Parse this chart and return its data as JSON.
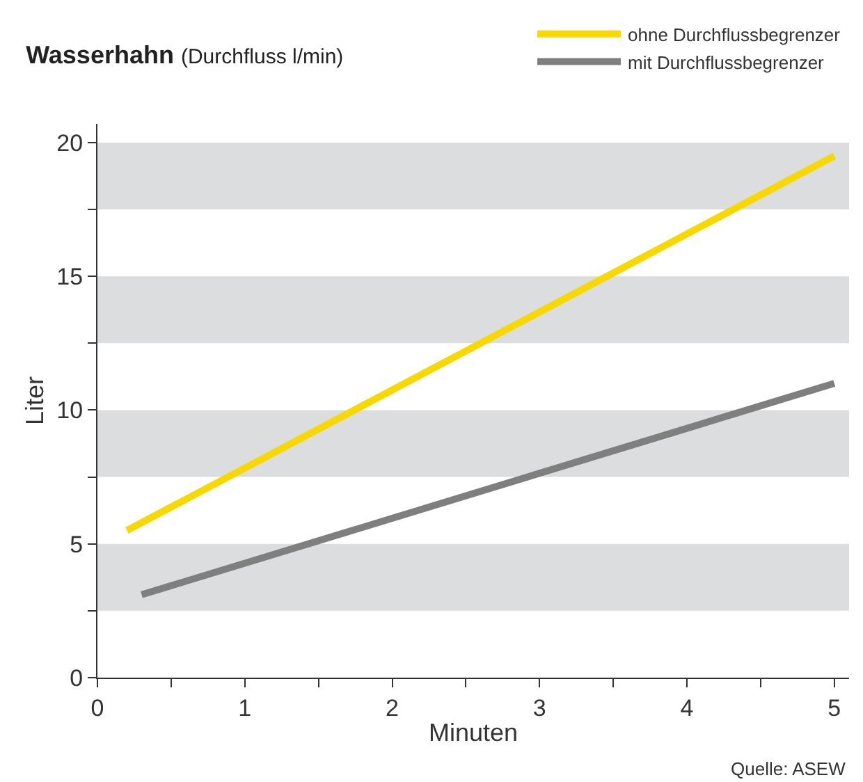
{
  "chart_data": {
    "type": "line",
    "title": "Wasserhahn",
    "subtitle": "(Durchfluss l/min)",
    "xlabel": "Minuten",
    "ylabel": "Liter",
    "annotations": [
      "Quelle: ASEW"
    ],
    "series": [
      {
        "name": "ohne Durchflussbegrenzer",
        "color": "#f7d800",
        "x": [
          0.2,
          5
        ],
        "values": [
          5.5,
          19.5
        ]
      },
      {
        "name": "mit Durchflussbegrenzer",
        "color": "#7f7f7f",
        "x": [
          0.3,
          5
        ],
        "values": [
          3.1,
          11.0
        ]
      }
    ],
    "xlim": [
      0,
      5.1
    ],
    "ylim": [
      0,
      20.7
    ],
    "xticks": [
      0,
      {
        "value": 0.5,
        "label": null
      },
      1,
      {
        "value": 1.5,
        "label": null
      },
      2,
      {
        "value": 2.5,
        "label": null
      },
      3,
      {
        "value": 3.5,
        "label": null
      },
      4,
      {
        "value": 4.5,
        "label": null
      },
      5
    ],
    "yticks": [
      0,
      {
        "value": 2.5,
        "label": null
      },
      5,
      {
        "value": 7.5,
        "label": null
      },
      10,
      {
        "value": 12.5,
        "label": null
      },
      15,
      {
        "value": 17.5,
        "label": null
      },
      20
    ],
    "bands": [
      {
        "axis": "y",
        "from": 2.5,
        "to": 5,
        "color": "#dcdddf"
      },
      {
        "axis": "y",
        "from": 7.5,
        "to": 10,
        "color": "#dcdddf"
      },
      {
        "axis": "y",
        "from": 12.5,
        "to": 15,
        "color": "#dcdddf"
      },
      {
        "axis": "y",
        "from": 17.5,
        "to": 20,
        "color": "#dcdddf"
      }
    ],
    "grid": false,
    "legend": "top right",
    "line_style": "solid",
    "marker": "none"
  }
}
